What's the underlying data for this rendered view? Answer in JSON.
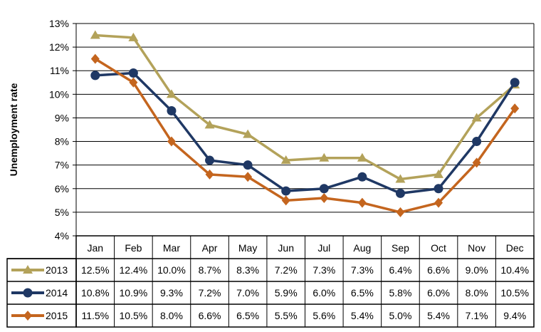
{
  "chart_data": {
    "type": "line",
    "title": "",
    "xlabel": "",
    "ylabel": "Unemployment rate",
    "ylim": [
      4,
      13
    ],
    "yticks": [
      "4%",
      "5%",
      "6%",
      "7%",
      "8%",
      "9%",
      "10%",
      "11%",
      "12%",
      "13%"
    ],
    "grid": true,
    "legend": "data-table-left",
    "categories": [
      "Jan",
      "Feb",
      "Mar",
      "Apr",
      "May",
      "Jun",
      "Jul",
      "Aug",
      "Sep",
      "Oct",
      "Nov",
      "Dec"
    ],
    "series": [
      {
        "name": "2013",
        "color": "#B3A25A",
        "marker": "triangle",
        "values": [
          12.5,
          12.4,
          10.0,
          8.7,
          8.3,
          7.2,
          7.3,
          7.3,
          6.4,
          6.6,
          9.0,
          10.4
        ],
        "labels": [
          "12.5%",
          "12.4%",
          "10.0%",
          "8.7%",
          "8.3%",
          "7.2%",
          "7.3%",
          "7.3%",
          "6.4%",
          "6.6%",
          "9.0%",
          "10.4%"
        ]
      },
      {
        "name": "2014",
        "color": "#1F3864",
        "marker": "circle",
        "values": [
          10.8,
          10.9,
          9.3,
          7.2,
          7.0,
          5.9,
          6.0,
          6.5,
          5.8,
          6.0,
          8.0,
          10.5
        ],
        "labels": [
          "10.8%",
          "10.9%",
          "9.3%",
          "7.2%",
          "7.0%",
          "5.9%",
          "6.0%",
          "6.5%",
          "5.8%",
          "6.0%",
          "8.0%",
          "10.5%"
        ]
      },
      {
        "name": "2015",
        "color": "#C4651E",
        "marker": "diamond",
        "values": [
          11.5,
          10.5,
          8.0,
          6.6,
          6.5,
          5.5,
          5.6,
          5.4,
          5.0,
          5.4,
          7.1,
          9.4
        ],
        "labels": [
          "11.5%",
          "10.5%",
          "8.0%",
          "6.6%",
          "6.5%",
          "5.5%",
          "5.6%",
          "5.4%",
          "5.0%",
          "5.4%",
          "7.1%",
          "9.4%"
        ]
      }
    ]
  }
}
